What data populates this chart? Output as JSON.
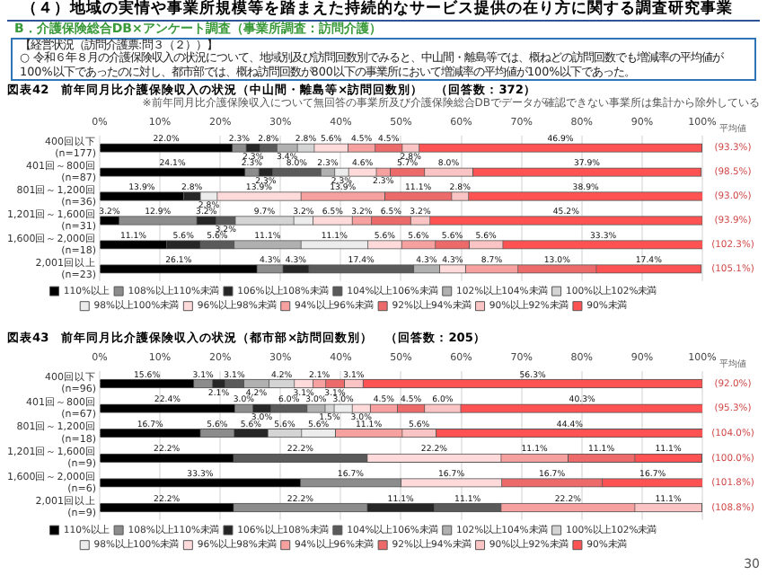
{
  "chart_data": [
    {
      "type": "bar",
      "orientation": "horizontal",
      "stacked": true,
      "title": "図表42　前年同月比介護保険収入の状況（中山間・離島等×訪問回数別）　（回答数：372）",
      "annotations": [
        "（４）地域の実情や事業所規模等を踏まえた持続的なサービス提供の在り方に関する調査研究事業",
        "B．介護保険総合DB×アンケート調査（事業所調査：訪問介護）",
        "【経営状況（訪問介護票:問３（２））】",
        "○ 令和６年８月の介護保険収入の状況について、地域別及び訪問回数別でみると、中山間・離島等では、概ねどの訪問回数でも増減率の平均値が100%以下であったのに対し、都市部では、概ね訪問回数が800以下の事業所において増減率の平均値が100%以下であった。",
        "※前年同月比介護保険収入について無回答の事業所及び介護保険総合DBでデータが確認できない事業所は集計から除外している",
        "平均値",
        "(93.3%)",
        "(98.5%)",
        "(93.0%)",
        "(93.9%)",
        "(102.3%)",
        "(105.1%)"
      ],
      "categories": [
        "400回以下\n(n=177)",
        "401回～800回\n(n=87)",
        "801回～1,200回\n(n=36)",
        "1,201回～1,600回\n(n=31)",
        "1,600回～2,000回\n(n=18)",
        "2,001回以上\n(n=23)"
      ],
      "xlim": [
        0,
        100
      ],
      "xticks": [
        {
          "value": 0,
          "label": "0%"
        },
        {
          "value": 10,
          "label": "10%"
        },
        {
          "value": 20,
          "label": "20%"
        },
        {
          "value": 30,
          "label": "30%"
        },
        {
          "value": 40,
          "label": "40%"
        },
        {
          "value": 50,
          "label": "50%"
        },
        {
          "value": 60,
          "label": "60%"
        },
        {
          "value": 70,
          "label": "70%"
        },
        {
          "value": 80,
          "label": "80%"
        },
        {
          "value": 90,
          "label": "90%"
        },
        {
          "value": 100,
          "label": "100%"
        }
      ],
      "grid": "x",
      "legend": "bottom",
      "series": [
        {
          "name": "110%以上",
          "color": "#000000",
          "values": [
            22.0,
            24.1,
            13.9,
            3.2,
            11.1,
            26.1
          ],
          "value_labels": [
            "22.0%",
            "24.1%",
            "13.9%",
            "3.2%",
            "11.1%",
            "26.1%"
          ]
        },
        {
          "name": "108%以上110%未満",
          "color": "#8c8c8c",
          "values": [
            2.3,
            2.3,
            0.0,
            12.9,
            0.0,
            4.3
          ],
          "value_labels": [
            "2.3%",
            "2.3%",
            null,
            "12.9%",
            null,
            "4.3%"
          ]
        },
        {
          "name": "106%以上108%未満",
          "color": "#262626",
          "values": [
            2.3,
            2.3,
            2.8,
            3.2,
            5.6,
            4.3
          ],
          "value_labels": [
            "2.3%",
            "2.3%",
            "2.8%",
            "3.2%",
            "5.6%",
            "4.3%"
          ]
        },
        {
          "name": "104%以上106%未満",
          "color": "#5a5a5a",
          "values": [
            2.8,
            8.0,
            0.0,
            3.2,
            5.6,
            17.4
          ],
          "value_labels": [
            "2.8%",
            "8.0%",
            null,
            "3.2%",
            "5.6%",
            "17.4%"
          ]
        },
        {
          "name": "102%以上104%未満",
          "color": "#b0b0b0",
          "values": [
            3.4,
            2.3,
            0.0,
            0.0,
            11.1,
            4.3
          ],
          "value_labels": [
            "3.4%",
            "2.3%",
            null,
            null,
            "11.1%",
            "4.3%"
          ]
        },
        {
          "name": "100%以上102%未満",
          "color": "#d4d4d4",
          "values": [
            2.8,
            0.0,
            0.0,
            9.7,
            0.0,
            0.0
          ],
          "value_labels": [
            "2.8%",
            null,
            null,
            "9.7%",
            null,
            null
          ]
        },
        {
          "name": "98%以上100%未満",
          "color": "#ececec",
          "values": [
            0.0,
            2.3,
            2.8,
            3.2,
            11.1,
            0.0
          ],
          "value_labels": [
            null,
            "2.3%",
            "2.8%",
            "3.2%",
            "11.1%",
            null
          ]
        },
        {
          "name": "96%以上98%未満",
          "color": "#ffdada",
          "values": [
            5.6,
            4.6,
            13.9,
            6.5,
            5.6,
            4.3
          ],
          "value_labels": [
            "5.6%",
            "4.6%",
            "13.9%",
            "6.5%",
            "5.6%",
            "4.3%"
          ]
        },
        {
          "name": "94%以上96%未満",
          "color": "#f7a0a0",
          "values": [
            4.5,
            2.3,
            13.9,
            3.2,
            5.6,
            8.7
          ],
          "value_labels": [
            "4.5%",
            "2.3%",
            "13.9%",
            "3.2%",
            "5.6%",
            "8.7%"
          ]
        },
        {
          "name": "92%以上94%未満",
          "color": "#ec6a6a",
          "values": [
            4.5,
            5.7,
            11.1,
            6.5,
            5.6,
            13.0
          ],
          "value_labels": [
            "4.5%",
            "5.7%",
            "11.1%",
            "6.5%",
            "5.6%",
            "13.0%"
          ]
        },
        {
          "name": "90%以上92%未満",
          "color": "#fbc4c4",
          "values": [
            2.8,
            8.0,
            2.8,
            3.2,
            5.6,
            0.0
          ],
          "value_labels": [
            "2.8%",
            "8.0%",
            "2.8%",
            "3.2%",
            "5.6%",
            null
          ]
        },
        {
          "name": "90%未満",
          "color": "#ff5353",
          "values": [
            46.9,
            37.9,
            38.9,
            45.2,
            33.3,
            17.4
          ],
          "value_labels": [
            "46.9%",
            "37.9%",
            "38.9%",
            "45.2%",
            "33.3%",
            "17.4%"
          ]
        }
      ]
    },
    {
      "type": "bar",
      "orientation": "horizontal",
      "stacked": true,
      "title": "図表43　前年同月比介護保険収入の状況（都市部×訪問回数別）　（回答数：205）",
      "annotations": [
        "平均値",
        "(92.0%)",
        "(95.3%)",
        "(104.0%)",
        "(100.0%)",
        "(101.8%)",
        "(108.8%)",
        "30"
      ],
      "categories": [
        "400回以下\n(n=96)",
        "401回～800回\n(n=67)",
        "801回～1,200回\n(n=18)",
        "1,201回～1,600回\n(n=9)",
        "1,600回～2,000回\n(n=6)",
        "2,001回以上\n(n=9)"
      ],
      "xlim": [
        0,
        100
      ],
      "xticks": [
        {
          "value": 0,
          "label": "0%"
        },
        {
          "value": 10,
          "label": "10%"
        },
        {
          "value": 20,
          "label": "20%"
        },
        {
          "value": 30,
          "label": "30%"
        },
        {
          "value": 40,
          "label": "40%"
        },
        {
          "value": 50,
          "label": "50%"
        },
        {
          "value": 60,
          "label": "60%"
        },
        {
          "value": 70,
          "label": "70%"
        },
        {
          "value": 80,
          "label": "80%"
        },
        {
          "value": 90,
          "label": "90%"
        },
        {
          "value": 100,
          "label": "100%"
        }
      ],
      "grid": "x",
      "legend": "bottom",
      "series": [
        {
          "name": "110%以上",
          "color": "#000000",
          "values": [
            15.6,
            22.4,
            16.7,
            22.2,
            33.3,
            22.2
          ],
          "value_labels": [
            "15.6%",
            "22.4%",
            "16.7%",
            "22.2%",
            "33.3%",
            "22.2%"
          ]
        },
        {
          "name": "108%以上110%未満",
          "color": "#8c8c8c",
          "values": [
            3.1,
            3.0,
            5.6,
            0.0,
            16.7,
            22.2
          ],
          "value_labels": [
            "3.1%",
            "3.0%",
            "5.6%",
            null,
            "16.7%",
            "22.2%"
          ]
        },
        {
          "name": "106%以上108%未満",
          "color": "#262626",
          "values": [
            2.1,
            3.0,
            5.6,
            0.0,
            0.0,
            11.1
          ],
          "value_labels": [
            "2.1%",
            "3.0%",
            "5.6%",
            null,
            null,
            "11.1%"
          ]
        },
        {
          "name": "104%以上106%未満",
          "color": "#5a5a5a",
          "values": [
            3.1,
            6.0,
            0.0,
            22.2,
            0.0,
            11.1
          ],
          "value_labels": [
            "3.1%",
            "6.0%",
            null,
            "22.2%",
            null,
            "11.1%"
          ]
        },
        {
          "name": "102%以上104%未満",
          "color": "#b0b0b0",
          "values": [
            4.2,
            3.0,
            0.0,
            0.0,
            0.0,
            0.0
          ],
          "value_labels": [
            "4.2%",
            "3.0%",
            null,
            null,
            null,
            null
          ]
        },
        {
          "name": "100%以上102%未満",
          "color": "#d4d4d4",
          "values": [
            4.2,
            1.5,
            5.6,
            0.0,
            0.0,
            0.0
          ],
          "value_labels": [
            "4.2%",
            "1.5%",
            "5.6%",
            null,
            null,
            null
          ]
        },
        {
          "name": "98%以上100%未満",
          "color": "#ececec",
          "values": [
            0.0,
            3.0,
            5.6,
            0.0,
            0.0,
            0.0
          ],
          "value_labels": [
            null,
            "3.0%",
            "5.6%",
            null,
            null,
            null
          ]
        },
        {
          "name": "96%以上98%未満",
          "color": "#ffdada",
          "values": [
            3.1,
            3.0,
            0.0,
            22.2,
            16.7,
            0.0
          ],
          "value_labels": [
            "3.1%",
            "3.0%",
            null,
            "22.2%",
            "16.7%",
            null
          ]
        },
        {
          "name": "94%以上96%未満",
          "color": "#f7a0a0",
          "values": [
            2.1,
            4.5,
            11.1,
            11.1,
            0.0,
            22.2
          ],
          "value_labels": [
            "2.1%",
            "4.5%",
            "11.1%",
            "11.1%",
            null,
            "22.2%"
          ]
        },
        {
          "name": "92%以上94%未満",
          "color": "#ec6a6a",
          "values": [
            3.1,
            4.5,
            0.0,
            11.1,
            16.7,
            0.0
          ],
          "value_labels": [
            "3.1%",
            "4.5%",
            null,
            "11.1%",
            "16.7%",
            null
          ]
        },
        {
          "name": "90%以上92%未満",
          "color": "#fbc4c4",
          "values": [
            3.1,
            6.0,
            5.6,
            0.0,
            0.0,
            11.1
          ],
          "value_labels": [
            "3.1%",
            "6.0%",
            "5.6%",
            null,
            null,
            "11.1%"
          ]
        },
        {
          "name": "90%未満",
          "color": "#ff5353",
          "values": [
            56.3,
            40.3,
            44.4,
            11.1,
            16.7,
            0.0
          ],
          "value_labels": [
            "56.3%",
            "40.3%",
            "44.4%",
            "11.1%",
            "16.7%",
            null
          ]
        }
      ]
    }
  ]
}
